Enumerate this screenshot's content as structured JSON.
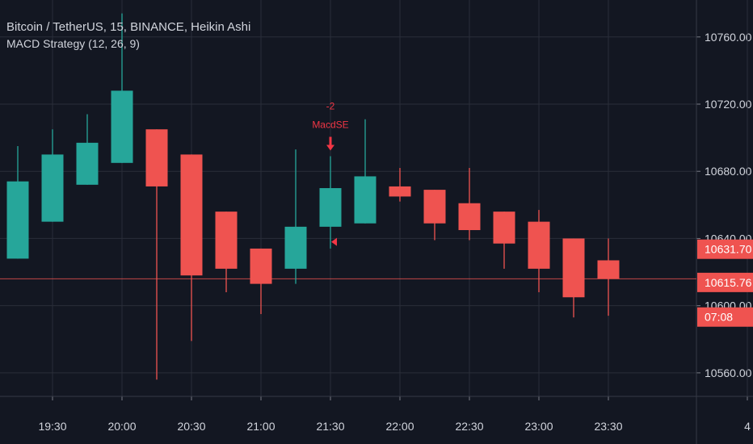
{
  "legend": {
    "symbol_line": "Bitcoin / TetherUS, 15, BINANCE, Heikin Ashi",
    "strategy_line": "MACD Strategy (12, 26, 9)"
  },
  "colors": {
    "background": "#131722",
    "grid": "#2a2e39",
    "up": "#26a69a",
    "down": "#ef5350",
    "signal": "#f23645",
    "axis_text": "#d1d4dc"
  },
  "chart_data": {
    "type": "candlestick",
    "style": "Heikin Ashi",
    "y_ticks": [
      "10760.00",
      "10720.00",
      "10680.00",
      "10640.00",
      "10600.00",
      "10560.00"
    ],
    "ylim": [
      10546,
      10782
    ],
    "x_ticks": [
      "19:30",
      "20:00",
      "20:30",
      "21:00",
      "21:30",
      "22:00",
      "22:30",
      "23:00",
      "23:30",
      "4"
    ],
    "candles": [
      {
        "time": "19:15",
        "open": 10628,
        "high": 10695,
        "low": 10628,
        "close": 10674
      },
      {
        "time": "19:30",
        "open": 10650,
        "high": 10705,
        "low": 10650,
        "close": 10690
      },
      {
        "time": "19:45",
        "open": 10672,
        "high": 10714,
        "low": 10672,
        "close": 10697
      },
      {
        "time": "20:00",
        "open": 10685,
        "high": 10774,
        "low": 10685,
        "close": 10728
      },
      {
        "time": "20:15",
        "open": 10705,
        "high": 10705,
        "low": 10556,
        "close": 10671
      },
      {
        "time": "20:30",
        "open": 10690,
        "high": 10690,
        "low": 10579,
        "close": 10618
      },
      {
        "time": "20:45",
        "open": 10656,
        "high": 10656,
        "low": 10608,
        "close": 10622
      },
      {
        "time": "21:00",
        "open": 10634,
        "high": 10634,
        "low": 10595,
        "close": 10613
      },
      {
        "time": "21:15",
        "open": 10622,
        "high": 10693,
        "low": 10613,
        "close": 10647
      },
      {
        "time": "21:30",
        "open": 10647,
        "high": 10689,
        "low": 10634,
        "close": 10670
      },
      {
        "time": "21:45",
        "open": 10649,
        "high": 10711,
        "low": 10649,
        "close": 10677
      },
      {
        "time": "22:00",
        "open": 10671,
        "high": 10682,
        "low": 10662,
        "close": 10665
      },
      {
        "time": "22:15",
        "open": 10669,
        "high": 10669,
        "low": 10639,
        "close": 10649
      },
      {
        "time": "22:30",
        "open": 10661,
        "high": 10682,
        "low": 10639,
        "close": 10645
      },
      {
        "time": "22:45",
        "open": 10656,
        "high": 10656,
        "low": 10622,
        "close": 10637
      },
      {
        "time": "23:00",
        "open": 10650,
        "high": 10657,
        "low": 10608,
        "close": 10622
      },
      {
        "time": "23:15",
        "open": 10640,
        "high": 10640,
        "low": 10593,
        "close": 10605
      },
      {
        "time": "23:30",
        "open": 10627,
        "high": 10640,
        "low": 10594,
        "close": 10616
      }
    ],
    "signal": {
      "time": "21:30",
      "count": "-2",
      "label": "MacdSE",
      "price": 10689
    },
    "current_price_line": 10616,
    "price_labels": [
      {
        "text": "10631.70",
        "price": 10631.7
      },
      {
        "text": "10615.76",
        "price": 10615.76
      },
      {
        "text": "07:08",
        "price": 10599
      }
    ],
    "grid": true
  }
}
